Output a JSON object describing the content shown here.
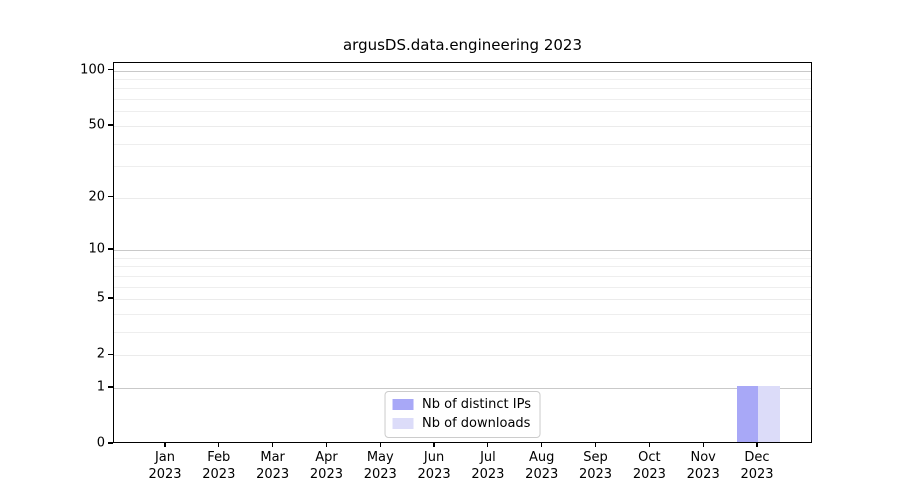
{
  "title": "argusDS.data.engineering 2023",
  "legend": {
    "items": [
      {
        "label": "Nb of distinct IPs",
        "color": "#a8a8f7"
      },
      {
        "label": "Nb of downloads",
        "color": "#dcdcf9"
      }
    ]
  },
  "chart_data": {
    "type": "bar",
    "title": "argusDS.data.engineering 2023",
    "categories": [
      "Jan\n2023",
      "Feb\n2023",
      "Mar\n2023",
      "Apr\n2023",
      "May\n2023",
      "Jun\n2023",
      "Jul\n2023",
      "Aug\n2023",
      "Sep\n2023",
      "Oct\n2023",
      "Nov\n2023",
      "Dec\n2023"
    ],
    "series": [
      {
        "name": "Nb of distinct IPs",
        "color": "#a8a8f7",
        "values": [
          0,
          0,
          0,
          0,
          0,
          0,
          0,
          0,
          0,
          0,
          0,
          1
        ]
      },
      {
        "name": "Nb of downloads",
        "color": "#dcdcf9",
        "values": [
          0,
          0,
          0,
          0,
          0,
          0,
          0,
          0,
          0,
          0,
          0,
          1
        ]
      }
    ],
    "xlabel": "",
    "ylabel": "",
    "yscale": "log1p",
    "ylim": [
      0,
      110
    ],
    "yticks": [
      0,
      1,
      2,
      5,
      10,
      20,
      50,
      100
    ],
    "minor_yticks": [
      3,
      4,
      6,
      7,
      8,
      9,
      30,
      40,
      60,
      70,
      80,
      90
    ],
    "emphasized_gridlines": [
      1,
      10,
      100
    ],
    "grid": true,
    "legend_position": "lower center"
  }
}
